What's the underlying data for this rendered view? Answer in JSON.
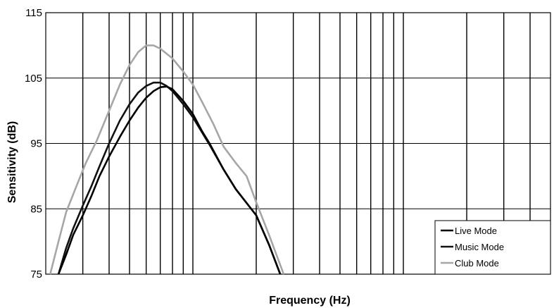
{
  "chart_data": {
    "type": "line",
    "title": "",
    "xlabel": "Frequency (Hz)",
    "ylabel": "Sensitivity (dB)",
    "x_scale": "log",
    "xlim": [
      20,
      5000
    ],
    "ylim": [
      75,
      115
    ],
    "y_ticks": [
      "75",
      "85",
      "95",
      "105",
      "115"
    ],
    "x_tick_labels_shown": false,
    "grid": true,
    "legend_position": "bottom-right",
    "series": [
      {
        "name": "Live Mode",
        "color": "#000000",
        "x": [
          23,
          25,
          27,
          30,
          33,
          36,
          40,
          45,
          50,
          55,
          60,
          65,
          70,
          75,
          80,
          90,
          100,
          110,
          120,
          140,
          160,
          200,
          230,
          260
        ],
        "y": [
          75,
          78,
          81,
          84,
          87,
          90,
          93,
          96,
          98.5,
          100.5,
          102,
          103,
          103.6,
          103.7,
          103.3,
          101.5,
          99.5,
          97,
          95,
          91,
          88,
          84,
          79.5,
          75
        ]
      },
      {
        "name": "Music Mode",
        "color": "#111111",
        "x": [
          23,
          25,
          27,
          30,
          33,
          36,
          40,
          45,
          50,
          55,
          60,
          65,
          70,
          75,
          80,
          90,
          100,
          110,
          120,
          140,
          160,
          200,
          230,
          260
        ],
        "y": [
          75,
          79,
          82,
          85.5,
          88.5,
          91.5,
          95,
          98.5,
          101,
          102.8,
          103.8,
          104.3,
          104.3,
          103.8,
          103,
          101,
          99,
          96.8,
          94.8,
          91,
          88,
          84,
          79.5,
          75
        ]
      },
      {
        "name": "Club Mode",
        "color": "#a6a6a6",
        "x": [
          21,
          23,
          25,
          28,
          31,
          35,
          40,
          45,
          50,
          55,
          60,
          65,
          70,
          80,
          90,
          100,
          110,
          125,
          140,
          160,
          180,
          200,
          230,
          270
        ],
        "y": [
          75,
          80,
          84.5,
          88.5,
          92,
          95.5,
          100,
          104,
          107,
          109,
          110,
          110,
          109.5,
          108,
          106,
          104,
          101.5,
          98,
          94.5,
          92,
          90,
          86,
          81,
          75
        ]
      }
    ]
  }
}
